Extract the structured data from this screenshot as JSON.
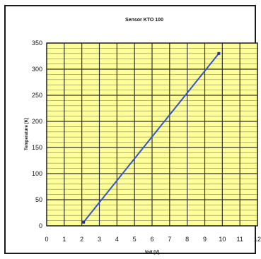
{
  "chart_data": {
    "type": "line",
    "title": "Sensor KTO 100",
    "xlabel": "Volt [V]",
    "ylabel": "Temperature [K]",
    "xlim": [
      0,
      12
    ],
    "ylim": [
      0,
      350
    ],
    "x_ticks": [
      0,
      1,
      2,
      3,
      4,
      5,
      6,
      7,
      8,
      9,
      10,
      11,
      12
    ],
    "y_ticks": [
      0,
      50,
      100,
      150,
      200,
      250,
      300,
      350
    ],
    "grid": true,
    "legend": "none",
    "colors": {
      "plot_background": "#ffff99",
      "line": "#3355cc",
      "grid": "#333333"
    },
    "series": [
      {
        "x": [
          2.1,
          9.8
        ],
        "y": [
          7,
          330
        ]
      }
    ]
  }
}
